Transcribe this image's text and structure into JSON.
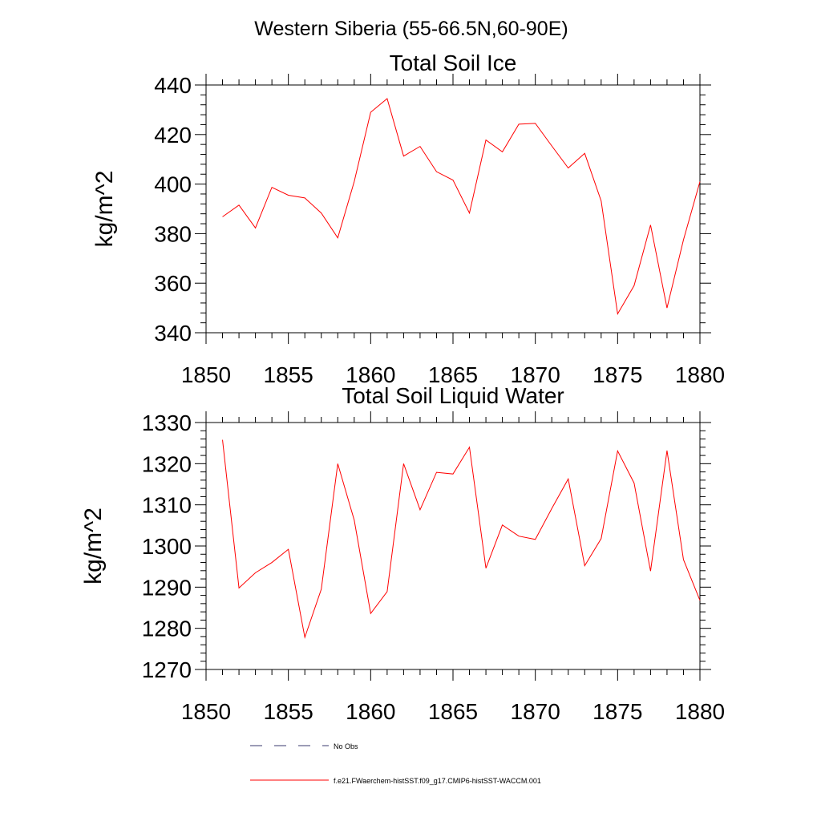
{
  "page_title": "Western Siberia (55-66.5N,60-90E)",
  "chart_data": [
    {
      "type": "line",
      "title": "Total Soil Ice",
      "xlabel": "",
      "ylabel": "kg/m^2",
      "xlim": [
        1850,
        1880
      ],
      "ylim": [
        340,
        440
      ],
      "xticks": [
        1850,
        1855,
        1860,
        1865,
        1870,
        1875,
        1880
      ],
      "yticks": [
        340,
        360,
        380,
        400,
        420,
        440
      ],
      "grid": false,
      "series": [
        {
          "name": "f.e21.FWaerchem-histSST.f09_g17.CMIP6-histSST-WACCM.001",
          "color": "#ff0000",
          "x": [
            1851,
            1852,
            1853,
            1854,
            1855,
            1856,
            1857,
            1858,
            1859,
            1860,
            1861,
            1862,
            1863,
            1864,
            1865,
            1866,
            1867,
            1868,
            1869,
            1870,
            1871,
            1872,
            1873,
            1874,
            1875,
            1876,
            1877,
            1878,
            1879,
            1880
          ],
          "values": [
            386.8,
            391.5,
            382.3,
            398.7,
            395.5,
            394.4,
            388.3,
            378.3,
            401.0,
            429.0,
            434.5,
            411.3,
            415.2,
            405.0,
            401.6,
            388.3,
            417.8,
            413.0,
            424.2,
            424.5,
            415.4,
            406.5,
            412.4,
            393.2,
            347.6,
            359.0,
            383.5,
            350.0,
            377.5,
            401.0
          ]
        }
      ]
    },
    {
      "type": "line",
      "title": "Total Soil Liquid Water",
      "xlabel": "",
      "ylabel": "kg/m^2",
      "xlim": [
        1850,
        1880
      ],
      "ylim": [
        1270,
        1330
      ],
      "xticks": [
        1850,
        1855,
        1860,
        1865,
        1870,
        1875,
        1880
      ],
      "yticks": [
        1270,
        1280,
        1290,
        1300,
        1310,
        1320,
        1330
      ],
      "grid": false,
      "series": [
        {
          "name": "f.e21.FWaerchem-histSST.f09_g17.CMIP6-histSST-WACCM.001",
          "color": "#ff0000",
          "x": [
            1851,
            1852,
            1853,
            1854,
            1855,
            1856,
            1857,
            1858,
            1859,
            1860,
            1861,
            1862,
            1863,
            1864,
            1865,
            1866,
            1867,
            1868,
            1869,
            1870,
            1871,
            1872,
            1873,
            1874,
            1875,
            1876,
            1877,
            1878,
            1879,
            1880
          ],
          "values": [
            1325.8,
            1289.8,
            1293.5,
            1296.0,
            1299.2,
            1277.8,
            1289.5,
            1320.0,
            1306.3,
            1283.6,
            1288.9,
            1320.0,
            1308.8,
            1317.9,
            1317.5,
            1324.0,
            1294.6,
            1305.1,
            1302.4,
            1301.6,
            1309.1,
            1316.3,
            1295.2,
            1301.8,
            1323.1,
            1315.3,
            1293.9,
            1323.2,
            1296.7,
            1286.8
          ]
        }
      ]
    }
  ],
  "legend": {
    "placement": "bottom",
    "items": [
      {
        "label": "No Obs",
        "style": "dashed",
        "color": "#3a3a6e"
      },
      {
        "label": "f.e21.FWaerchem-histSST.f09_g17.CMIP6-histSST-WACCM.001",
        "style": "solid",
        "color": "#ff0000"
      }
    ]
  }
}
